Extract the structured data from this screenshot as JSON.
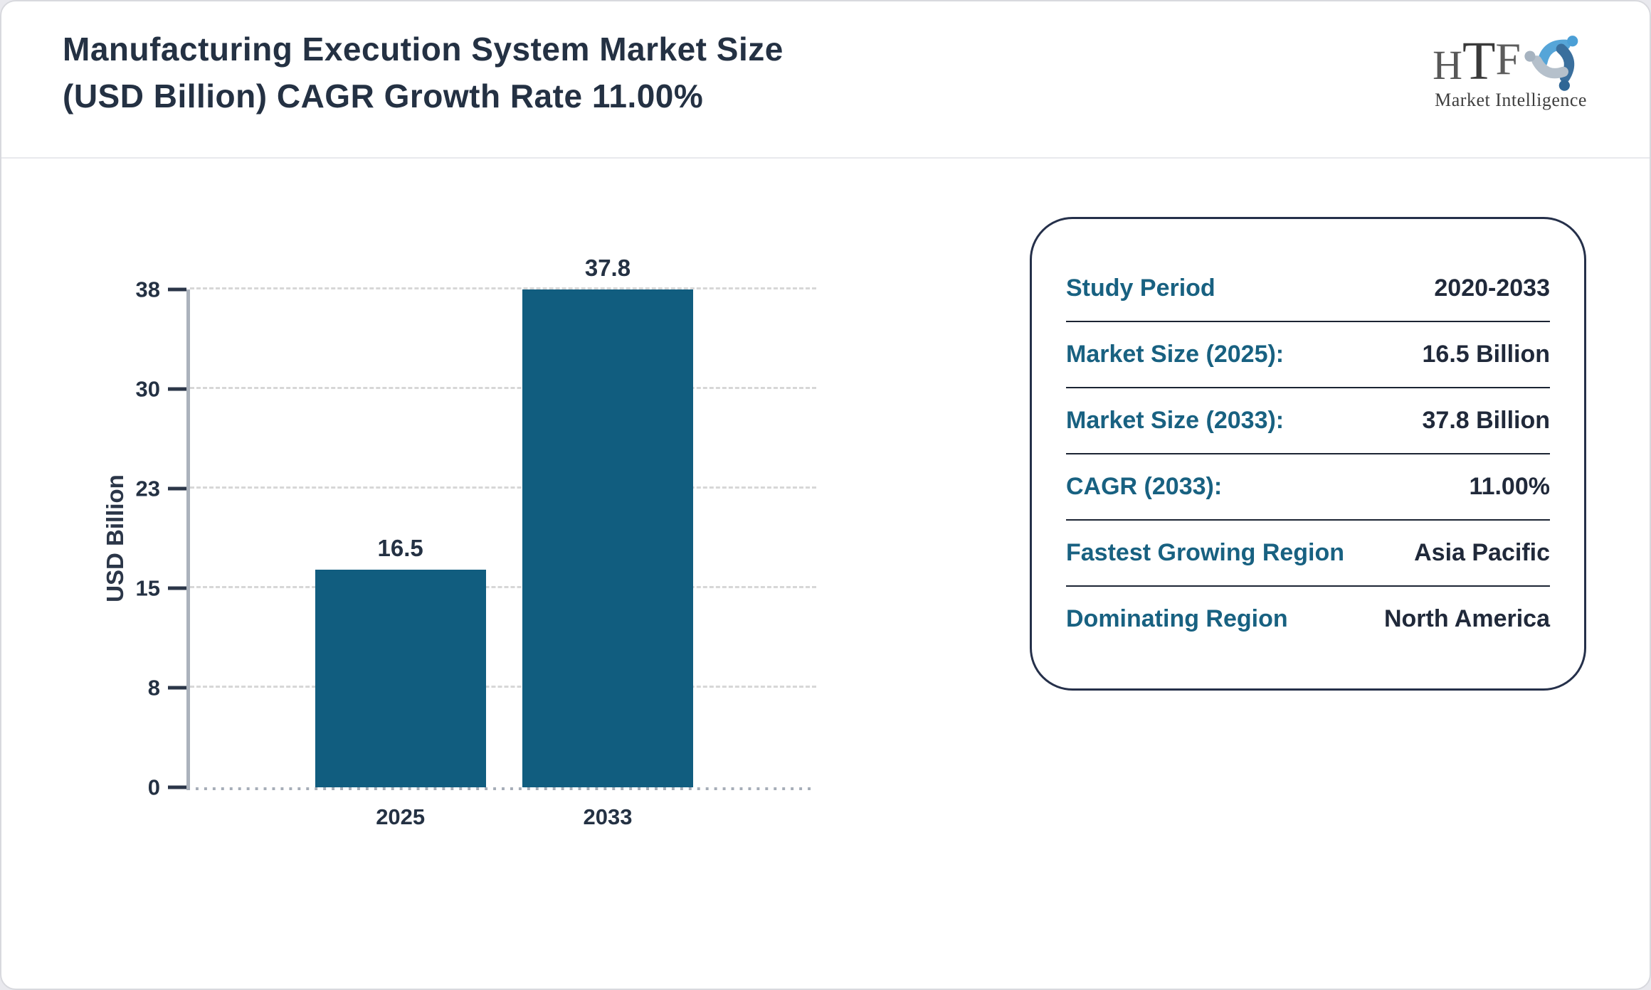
{
  "header": {
    "title_lines": [
      "Manufacturing Execution System Market Size",
      "(USD Billion) CAGR Growth Rate 11.00%"
    ],
    "logo": {
      "acronym_letters": [
        "H",
        "T",
        "F"
      ],
      "caption": "Market Intelligence"
    }
  },
  "chart_data": {
    "type": "bar",
    "title": "Manufacturing Execution System Market Size (USD Billion) CAGR Growth Rate 11.00%",
    "categories": [
      "2025",
      "2033"
    ],
    "values": [
      16.5,
      37.8
    ],
    "value_labels": [
      "16.5",
      "37.8"
    ],
    "xlabel": "",
    "ylabel": "USD Billion",
    "ylim": [
      0,
      37.8
    ],
    "y_tick_labels": [
      "0",
      "8",
      "15",
      "23",
      "30",
      "38"
    ],
    "grid": true,
    "legend": false,
    "bar_color": "#115d7f"
  },
  "info_panel": {
    "rows": [
      {
        "label": "Study Period",
        "value": "2020-2033"
      },
      {
        "label": "Market Size (2025):",
        "value": "16.5 Billion"
      },
      {
        "label": "Market Size (2033):",
        "value": "37.8 Billion"
      },
      {
        "label": "CAGR (2033):",
        "value": "11.00%"
      },
      {
        "label": "Fastest Growing Region",
        "value": "Asia Pacific"
      },
      {
        "label": "Dominating Region",
        "value": "North America"
      }
    ]
  },
  "colors": {
    "bar": "#115d7f",
    "label_teal": "#186181",
    "text_navy": "#243143",
    "panel_border": "#25304a",
    "gridline": "#d7d7d7",
    "axis": "#abb2bc"
  }
}
